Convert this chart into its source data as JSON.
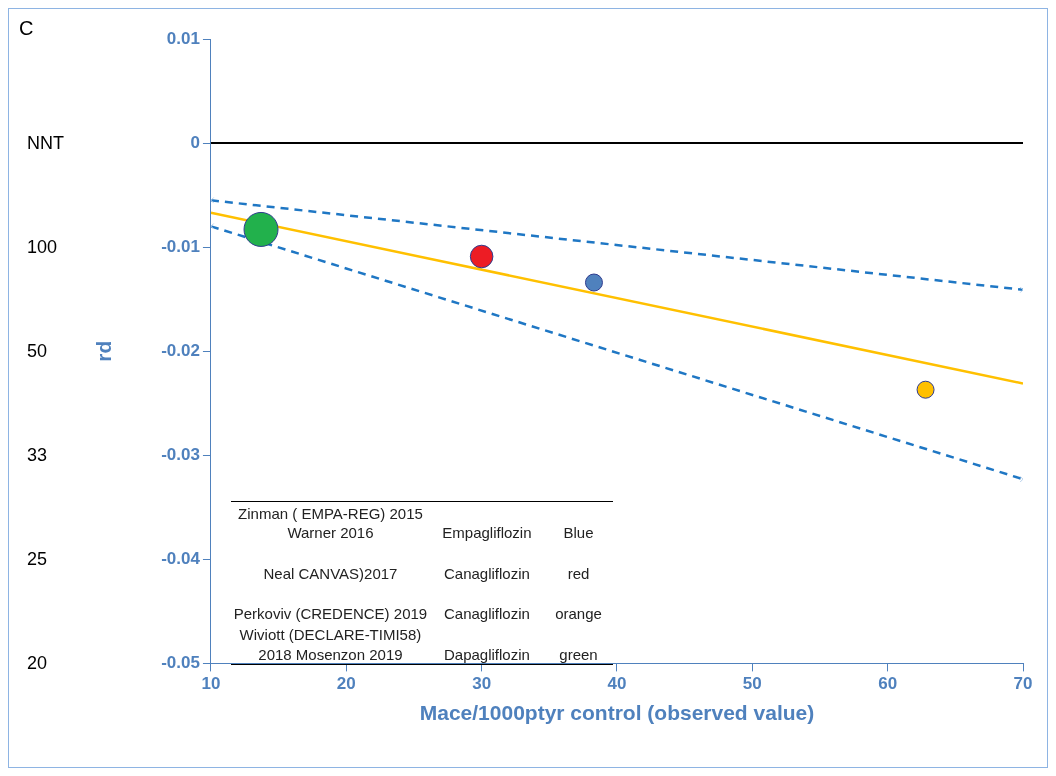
{
  "chart_data": {
    "type": "bubble",
    "xlabel": "Mace/1000ptyr control (observed value)",
    "ylabel": "rd",
    "xlim": [
      10,
      70
    ],
    "xticks": [
      10,
      20,
      30,
      40,
      50,
      60,
      70
    ],
    "ylim": [
      -0.05,
      0.01
    ],
    "yticks": [
      -0.05,
      -0.04,
      -0.03,
      -0.02,
      -0.01,
      0,
      0.01
    ],
    "series": [
      {
        "x": [
          13.7,
          30.0,
          38.3,
          62.8
        ],
        "values": [
          -0.0083,
          -0.0109,
          -0.0134,
          -0.0237
        ],
        "sizes": [
          1,
          0.44,
          0.25,
          0.25
        ],
        "colors": [
          "#22b14c",
          "#ed1c24",
          "#4f81bd",
          "#ffc000"
        ]
      },
      {
        "type": "line",
        "x": [
          10,
          70
        ],
        "values": [
          -0.0067,
          -0.0231
        ],
        "color": "#ffc000",
        "line_style": "solid",
        "marker": "none"
      },
      {
        "type": "line",
        "x": [
          10,
          70
        ],
        "values": [
          -0.0055,
          -0.0141
        ],
        "color": "#1f77c4",
        "line_style": "dashed",
        "marker": "cross"
      },
      {
        "type": "line",
        "x": [
          10,
          70
        ],
        "values": [
          -0.008,
          -0.0323
        ],
        "color": "#1f77c4",
        "line_style": "dashed",
        "marker": "cross"
      }
    ],
    "ref_lines": [
      {
        "axis": "y",
        "value": 0,
        "color": "#000000"
      }
    ],
    "annotations": [
      "C",
      "NNT",
      "100",
      "50",
      "33",
      "25",
      "20",
      "Zinman ( EMPA-REG) 2015\nWarner 2016",
      "Empagliflozin",
      "Blue",
      "Neal CANVAS)2017",
      "Canagliflozin",
      "red",
      "Perkoviv (CREDENCE) 2019",
      "Canagliflozin",
      "orange",
      "Wiviott (DECLARE-TIMI58)\n2018 Mosenzon 2019",
      "Dapagliflozin",
      "green"
    ],
    "grid": false,
    "legend": false
  }
}
